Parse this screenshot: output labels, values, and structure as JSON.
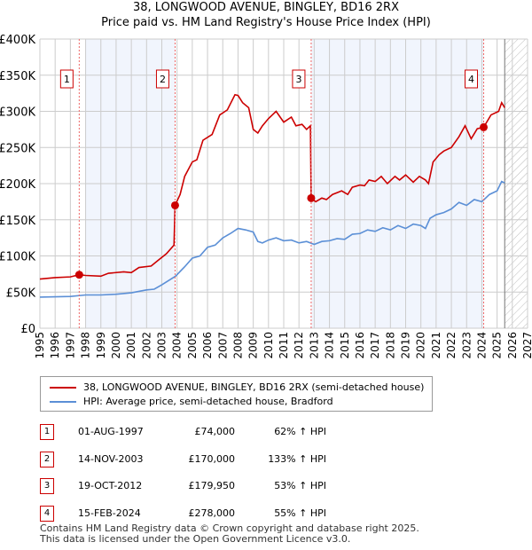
{
  "title": "38, LONGWOOD AVENUE, BINGLEY, BD16 2RX",
  "subtitle": "Price paid vs. HM Land Registry's House Price Index (HPI)",
  "chart_data": {
    "type": "line",
    "ylim": [
      0,
      400000
    ],
    "xlim": [
      1995,
      2027
    ],
    "yticks": [
      {
        "v": 0,
        "label": "£0"
      },
      {
        "v": 50000,
        "label": "£50K"
      },
      {
        "v": 100000,
        "label": "£100K"
      },
      {
        "v": 150000,
        "label": "£150K"
      },
      {
        "v": 200000,
        "label": "£200K"
      },
      {
        "v": 250000,
        "label": "£250K"
      },
      {
        "v": 300000,
        "label": "£300K"
      },
      {
        "v": 350000,
        "label": "£350K"
      },
      {
        "v": 400000,
        "label": "£400K"
      }
    ],
    "xticks": [
      "1995",
      "1996",
      "1997",
      "1998",
      "1999",
      "2000",
      "2001",
      "2002",
      "2003",
      "2004",
      "2005",
      "2006",
      "2007",
      "2008",
      "2009",
      "2010",
      "2011",
      "2012",
      "2013",
      "2014",
      "2015",
      "2016",
      "2017",
      "2018",
      "2019",
      "2020",
      "2021",
      "2022",
      "2023",
      "2024",
      "2025",
      "2026",
      "2027"
    ],
    "shaded": [
      [
        1998.0,
        2003.87
      ],
      [
        2012.8,
        2024.12
      ]
    ],
    "forecast_start": 2025.5,
    "series": [
      {
        "name": "38, LONGWOOD AVENUE, BINGLEY, BD16 2RX (semi-detached house)",
        "color": "#cc0000",
        "points": [
          [
            1995,
            68
          ],
          [
            1996,
            70
          ],
          [
            1997,
            71
          ],
          [
            1997.58,
            74
          ],
          [
            1998,
            73
          ],
          [
            1999,
            72
          ],
          [
            1999.5,
            76
          ],
          [
            2000.5,
            78
          ],
          [
            2001,
            77
          ],
          [
            2001.5,
            84
          ],
          [
            2002.3,
            86
          ],
          [
            2002.7,
            93
          ],
          [
            2003.3,
            103
          ],
          [
            2003.8,
            115
          ],
          [
            2003.87,
            170
          ],
          [
            2004.2,
            185
          ],
          [
            2004.5,
            210
          ],
          [
            2005,
            230
          ],
          [
            2005.3,
            233
          ],
          [
            2005.7,
            260
          ],
          [
            2006.3,
            268
          ],
          [
            2006.8,
            295
          ],
          [
            2007.3,
            302
          ],
          [
            2007.8,
            323
          ],
          [
            2008,
            322
          ],
          [
            2008.3,
            312
          ],
          [
            2008.7,
            305
          ],
          [
            2009,
            275
          ],
          [
            2009.3,
            270
          ],
          [
            2009.6,
            280
          ],
          [
            2010,
            290
          ],
          [
            2010.5,
            300
          ],
          [
            2011,
            285
          ],
          [
            2011.5,
            292
          ],
          [
            2011.8,
            280
          ],
          [
            2012.2,
            282
          ],
          [
            2012.5,
            275
          ],
          [
            2012.75,
            280
          ],
          [
            2012.8,
            180
          ],
          [
            2013.1,
            175
          ],
          [
            2013.5,
            180
          ],
          [
            2013.8,
            178
          ],
          [
            2014.2,
            185
          ],
          [
            2014.8,
            190
          ],
          [
            2015.2,
            185
          ],
          [
            2015.5,
            195
          ],
          [
            2016,
            198
          ],
          [
            2016.3,
            197
          ],
          [
            2016.6,
            205
          ],
          [
            2017,
            203
          ],
          [
            2017.4,
            210
          ],
          [
            2017.8,
            200
          ],
          [
            2018.3,
            210
          ],
          [
            2018.6,
            205
          ],
          [
            2019,
            212
          ],
          [
            2019.5,
            202
          ],
          [
            2019.9,
            210
          ],
          [
            2020.3,
            205
          ],
          [
            2020.5,
            200
          ],
          [
            2020.8,
            230
          ],
          [
            2021.2,
            240
          ],
          [
            2021.5,
            245
          ],
          [
            2022,
            250
          ],
          [
            2022.5,
            265
          ],
          [
            2022.9,
            280
          ],
          [
            2023.3,
            262
          ],
          [
            2023.7,
            276
          ],
          [
            2024.12,
            278
          ],
          [
            2024.6,
            295
          ],
          [
            2025.1,
            300
          ],
          [
            2025.3,
            312
          ],
          [
            2025.5,
            305
          ]
        ]
      },
      {
        "name": "HPI: Average price, semi-detached house, Bradford",
        "color": "#5b8fd6",
        "points": [
          [
            1995,
            43
          ],
          [
            1997,
            44
          ],
          [
            1998,
            46
          ],
          [
            1999,
            46
          ],
          [
            2000,
            47
          ],
          [
            2001,
            49
          ],
          [
            2002,
            53
          ],
          [
            2002.5,
            54
          ],
          [
            2003,
            60
          ],
          [
            2003.9,
            72
          ],
          [
            2004.5,
            85
          ],
          [
            2005,
            97
          ],
          [
            2005.5,
            100
          ],
          [
            2006,
            112
          ],
          [
            2006.5,
            115
          ],
          [
            2007,
            125
          ],
          [
            2007.5,
            131
          ],
          [
            2008,
            138
          ],
          [
            2008.5,
            136
          ],
          [
            2009,
            133
          ],
          [
            2009.3,
            120
          ],
          [
            2009.6,
            118
          ],
          [
            2010,
            122
          ],
          [
            2010.5,
            125
          ],
          [
            2011,
            121
          ],
          [
            2011.5,
            122
          ],
          [
            2012,
            118
          ],
          [
            2012.5,
            120
          ],
          [
            2013,
            116
          ],
          [
            2013.5,
            120
          ],
          [
            2014,
            121
          ],
          [
            2014.5,
            124
          ],
          [
            2015,
            123
          ],
          [
            2015.5,
            130
          ],
          [
            2016,
            131
          ],
          [
            2016.5,
            136
          ],
          [
            2017,
            134
          ],
          [
            2017.5,
            139
          ],
          [
            2018,
            136
          ],
          [
            2018.5,
            142
          ],
          [
            2019,
            138
          ],
          [
            2019.5,
            144
          ],
          [
            2020,
            142
          ],
          [
            2020.3,
            138
          ],
          [
            2020.6,
            152
          ],
          [
            2021,
            157
          ],
          [
            2021.5,
            160
          ],
          [
            2022,
            165
          ],
          [
            2022.5,
            174
          ],
          [
            2023,
            170
          ],
          [
            2023.5,
            178
          ],
          [
            2024,
            175
          ],
          [
            2024.5,
            185
          ],
          [
            2025,
            190
          ],
          [
            2025.3,
            203
          ],
          [
            2025.5,
            201
          ]
        ]
      }
    ],
    "sales": [
      {
        "n": "1",
        "x": 1997.58,
        "v": 74000
      },
      {
        "n": "2",
        "x": 2003.87,
        "v": 170000
      },
      {
        "n": "3",
        "x": 2012.8,
        "v": 179950
      },
      {
        "n": "4",
        "x": 2024.12,
        "v": 278000
      }
    ]
  },
  "legend": {
    "red": "38, LONGWOOD AVENUE, BINGLEY, BD16 2RX (semi-detached house)",
    "blue": "HPI: Average price, semi-detached house, Bradford"
  },
  "table": [
    {
      "n": "1",
      "date": "01-AUG-1997",
      "price": "£74,000",
      "hpi": "62% ↑ HPI"
    },
    {
      "n": "2",
      "date": "14-NOV-2003",
      "price": "£170,000",
      "hpi": "133% ↑ HPI"
    },
    {
      "n": "3",
      "date": "19-OCT-2012",
      "price": "£179,950",
      "hpi": "53% ↑ HPI"
    },
    {
      "n": "4",
      "date": "15-FEB-2024",
      "price": "£278,000",
      "hpi": "55% ↑ HPI"
    }
  ],
  "footer": [
    "Contains HM Land Registry data © Crown copyright and database right 2025.",
    "This data is licensed under the Open Government Licence v3.0."
  ]
}
